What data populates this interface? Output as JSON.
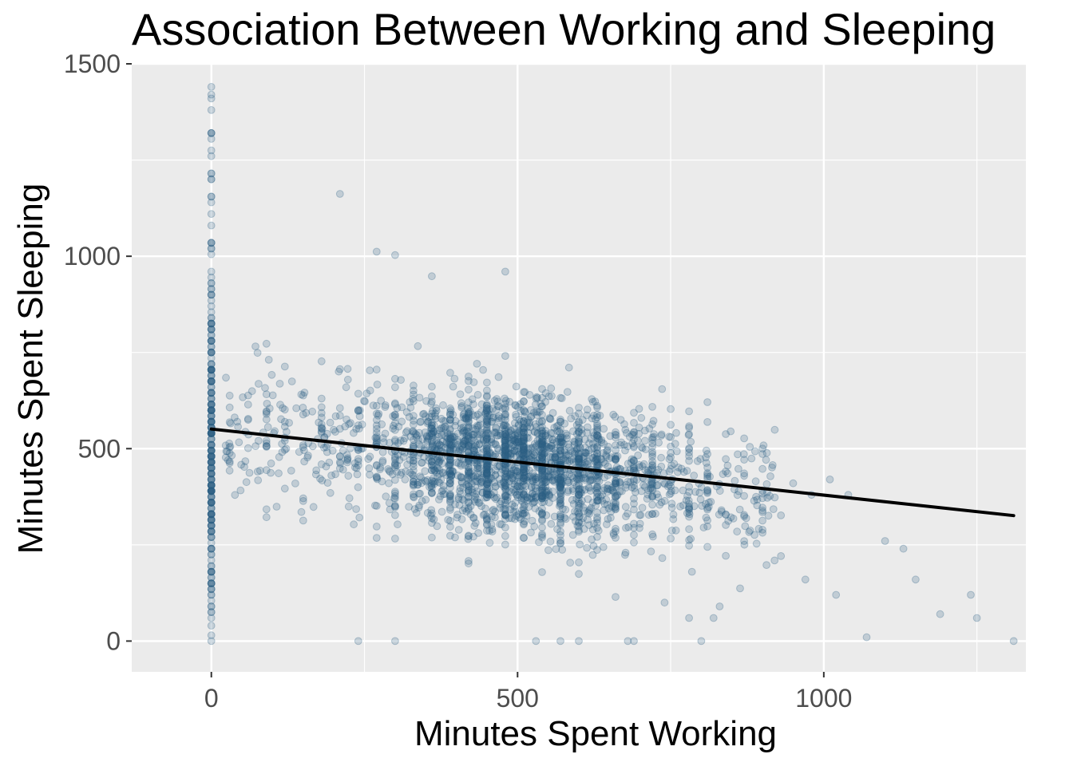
{
  "chart_data": {
    "type": "scatter",
    "title": "Association Between Working and Sleeping",
    "xlabel": "Minutes Spent Working",
    "ylabel": "Minutes Spent Sleeping",
    "xlim": [
      -130,
      1330
    ],
    "ylim": [
      -80,
      1500
    ],
    "x_ticks": [
      0,
      500,
      1000
    ],
    "x_tick_labels": [
      "0",
      "500",
      "1000"
    ],
    "y_ticks": [
      0,
      500,
      1000,
      1500
    ],
    "y_tick_labels": [
      "0",
      "500",
      "1000",
      "1500"
    ],
    "grid": true,
    "panel_background": "#ebebeb",
    "grid_color": "#ffffff",
    "point_color": "#2c5f85",
    "point_opacity": 0.22,
    "line_color": "#000000",
    "fit_line": {
      "x": [
        0,
        1310
      ],
      "y": [
        551,
        326
      ]
    },
    "series": [
      {
        "label_points": "notable points",
        "points": [
          [
            0,
            0
          ],
          [
            0,
            40
          ],
          [
            0,
            90
          ],
          [
            0,
            120
          ],
          [
            0,
            150
          ],
          [
            0,
            180
          ],
          [
            0,
            240
          ],
          [
            0,
            300
          ],
          [
            0,
            360
          ],
          [
            0,
            420
          ],
          [
            0,
            480
          ],
          [
            0,
            540
          ],
          [
            0,
            600
          ],
          [
            0,
            660
          ],
          [
            0,
            720
          ],
          [
            0,
            780
          ],
          [
            0,
            840
          ],
          [
            0,
            900
          ],
          [
            0,
            960
          ],
          [
            0,
            1020
          ],
          [
            0,
            1080
          ],
          [
            0,
            1140
          ],
          [
            0,
            1200
          ],
          [
            0,
            1260
          ],
          [
            0,
            1320
          ],
          [
            0,
            1380
          ],
          [
            0,
            1420
          ],
          [
            0,
            1440
          ],
          [
            210,
            1162
          ],
          [
            270,
            1012
          ],
          [
            300,
            1003
          ],
          [
            360,
            948
          ],
          [
            480,
            960
          ],
          [
            240,
            0
          ],
          [
            300,
            0
          ],
          [
            570,
            0
          ],
          [
            530,
            0
          ],
          [
            600,
            0
          ],
          [
            680,
            0
          ],
          [
            690,
            0
          ],
          [
            800,
            0
          ],
          [
            1310,
            0
          ],
          [
            1070,
            10
          ],
          [
            1240,
            120
          ],
          [
            1250,
            60
          ],
          [
            1190,
            70
          ],
          [
            1130,
            240
          ],
          [
            1100,
            260
          ],
          [
            1010,
            420
          ],
          [
            740,
            100
          ],
          [
            780,
            60
          ],
          [
            820,
            60
          ],
          [
            830,
            90
          ],
          [
            970,
            160
          ],
          [
            1020,
            120
          ],
          [
            950,
            410
          ],
          [
            980,
            380
          ],
          [
            1040,
            380
          ],
          [
            1150,
            160
          ]
        ]
      }
    ]
  }
}
